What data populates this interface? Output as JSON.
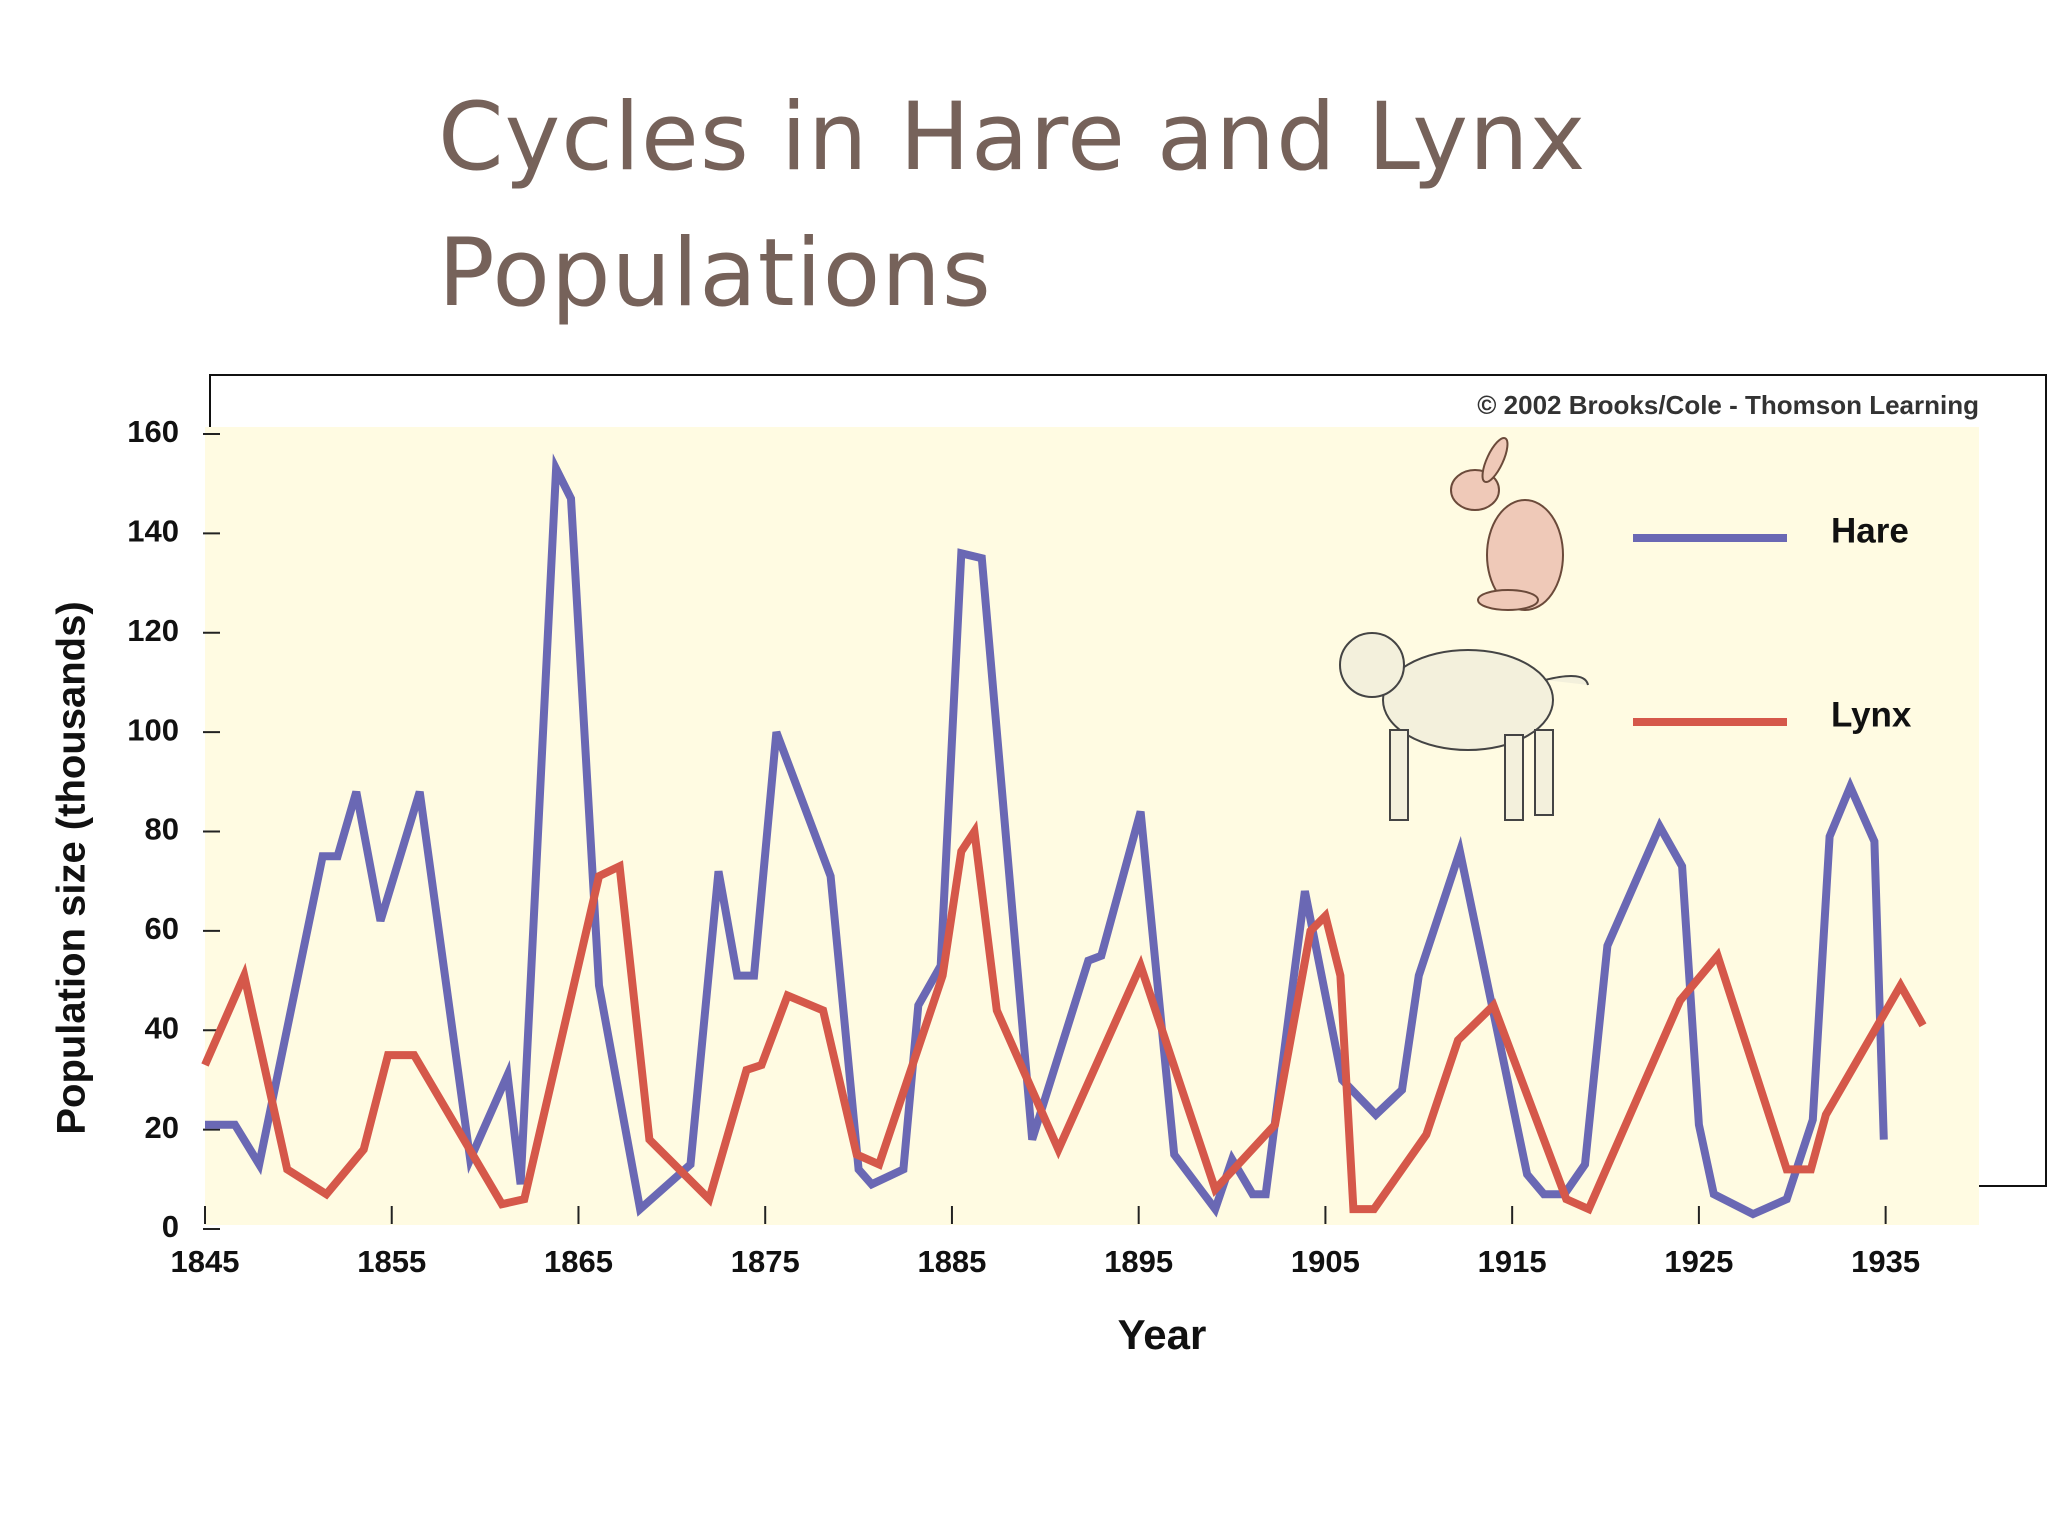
{
  "chart_data": {
    "type": "line",
    "title": "Cycles in Hare and Lynx Populations",
    "credit": "© 2002 Brooks/Cole - Thomson Learning",
    "x_label": "Year",
    "y_label": "Population size (thousands)",
    "xlim": [
      1845,
      1940
    ],
    "xticks": [
      1845,
      1855,
      1865,
      1875,
      1885,
      1895,
      1905,
      1915,
      1925,
      1935
    ],
    "ylim": [
      0,
      160
    ],
    "yticks": [
      0,
      20,
      40,
      60,
      80,
      100,
      120,
      140,
      160
    ],
    "series": [
      {
        "name": "Hare",
        "color": "#6a68b4",
        "x": [
          1845,
          1846.6,
          1847.9,
          1851.3,
          1852.1,
          1853.1,
          1854.4,
          1856.5,
          1859.2,
          1861.2,
          1861.9,
          1863.8,
          1864.6,
          1866.1,
          1868.3,
          1871,
          1872.5,
          1873.5,
          1874.4,
          1875.6,
          1878.5,
          1880,
          1880.7,
          1882.4,
          1883.2,
          1884.4,
          1885.5,
          1886.6,
          1889.3,
          1892.3,
          1893,
          1895.1,
          1896.9,
          1899.1,
          1900,
          1901.1,
          1901.8,
          1903.9,
          1905.9,
          1907.7,
          1909.1,
          1910,
          1912.2,
          1915.8,
          1916.7,
          1917.8,
          1918.9,
          1920.1,
          1922.9,
          1924.1,
          1925,
          1925.8,
          1927.9,
          1929.7,
          1931.1,
          1932,
          1933.1,
          1934.4,
          1934.9
        ],
        "values": [
          21,
          21,
          13,
          75,
          75,
          88,
          62,
          88,
          14,
          31,
          9,
          153,
          147,
          49,
          4,
          13,
          72,
          51,
          51,
          100,
          71,
          12,
          9,
          12,
          45,
          53,
          136,
          135,
          18,
          54,
          55,
          84,
          15,
          4,
          14,
          7,
          7,
          68,
          30,
          23,
          28,
          51,
          76,
          11,
          7,
          7,
          13,
          57,
          81,
          73,
          21,
          7,
          3,
          6,
          22,
          79,
          89,
          78,
          18
        ]
      },
      {
        "name": "Lynx",
        "color": "#d5584a",
        "x": [
          1845,
          1847.1,
          1849.4,
          1851.5,
          1853.5,
          1854.8,
          1856.2,
          1860.9,
          1862.1,
          1866.1,
          1867.2,
          1868.8,
          1872,
          1874,
          1874.8,
          1876.2,
          1878.1,
          1879.9,
          1881.1,
          1884.5,
          1885.5,
          1886.2,
          1887.4,
          1890.7,
          1895.1,
          1899.1,
          1902.3,
          1904.2,
          1905,
          1905.8,
          1906.5,
          1907.6,
          1910.4,
          1912.1,
          1914,
          1917.9,
          1919.1,
          1924,
          1926,
          1929.7,
          1931,
          1931.8,
          1935.8,
          1937
        ],
        "values": [
          33,
          51,
          12,
          7,
          16,
          35,
          35,
          5,
          6,
          71,
          73,
          18,
          6,
          32,
          33,
          47,
          44,
          15,
          13,
          51,
          76,
          80,
          44,
          16,
          53,
          8,
          21,
          60,
          63,
          51,
          4,
          4,
          19,
          38,
          45,
          6,
          4,
          46,
          55,
          12,
          12,
          23,
          49,
          41
        ]
      }
    ]
  }
}
